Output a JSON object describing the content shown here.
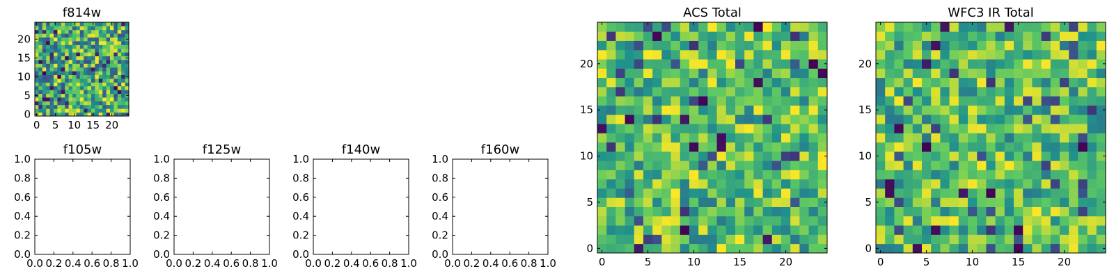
{
  "chart_data": [
    {
      "id": "f814w",
      "type": "heatmap",
      "title": "f814w",
      "colormap": "viridis",
      "grid_size": [
        25,
        25
      ],
      "xlim": [
        -0.5,
        24.5
      ],
      "ylim": [
        -0.5,
        24.5
      ],
      "xticks": [
        0,
        5,
        10,
        15,
        20
      ],
      "yticks": [
        0,
        5,
        10,
        15,
        20
      ],
      "xticklabels": [
        "0",
        "5",
        "10",
        "15",
        "20"
      ],
      "yticklabels": [
        "0",
        "5",
        "10",
        "15",
        "20"
      ],
      "values": "random_uniform_noise_25x25"
    },
    {
      "id": "f105w",
      "type": "heatmap",
      "title": "f105w",
      "empty": true,
      "xlim": [
        0.0,
        1.0
      ],
      "ylim": [
        0.0,
        1.0
      ],
      "xticks": [
        0.0,
        0.2,
        0.4,
        0.6,
        0.8,
        1.0
      ],
      "yticks": [
        0.0,
        0.2,
        0.4,
        0.6,
        0.8,
        1.0
      ],
      "xticklabels": [
        "0.0",
        "0.2",
        "0.4",
        "0.6",
        "0.8",
        "1.0"
      ],
      "yticklabels": [
        "0.0",
        "0.2",
        "0.4",
        "0.6",
        "0.8",
        "1.0"
      ]
    },
    {
      "id": "f125w",
      "type": "heatmap",
      "title": "f125w",
      "empty": true,
      "xlim": [
        0.0,
        1.0
      ],
      "ylim": [
        0.0,
        1.0
      ],
      "xticks": [
        0.0,
        0.2,
        0.4,
        0.6,
        0.8,
        1.0
      ],
      "yticks": [
        0.0,
        0.2,
        0.4,
        0.6,
        0.8,
        1.0
      ],
      "xticklabels": [
        "0.0",
        "0.2",
        "0.4",
        "0.6",
        "0.8",
        "1.0"
      ],
      "yticklabels": [
        "0.0",
        "0.2",
        "0.4",
        "0.6",
        "0.8",
        "1.0"
      ]
    },
    {
      "id": "f140w",
      "type": "heatmap",
      "title": "f140w",
      "empty": true,
      "xlim": [
        0.0,
        1.0
      ],
      "ylim": [
        0.0,
        1.0
      ],
      "xticks": [
        0.0,
        0.2,
        0.4,
        0.6,
        0.8,
        1.0
      ],
      "yticks": [
        0.0,
        0.2,
        0.4,
        0.6,
        0.8,
        1.0
      ],
      "xticklabels": [
        "0.0",
        "0.2",
        "0.4",
        "0.6",
        "0.8",
        "1.0"
      ],
      "yticklabels": [
        "0.0",
        "0.2",
        "0.4",
        "0.6",
        "0.8",
        "1.0"
      ]
    },
    {
      "id": "f160w",
      "type": "heatmap",
      "title": "f160w",
      "empty": true,
      "xlim": [
        0.0,
        1.0
      ],
      "ylim": [
        0.0,
        1.0
      ],
      "xticks": [
        0.0,
        0.2,
        0.4,
        0.6,
        0.8,
        1.0
      ],
      "yticks": [
        0.0,
        0.2,
        0.4,
        0.6,
        0.8,
        1.0
      ],
      "xticklabels": [
        "0.0",
        "0.2",
        "0.4",
        "0.6",
        "0.8",
        "1.0"
      ],
      "yticklabels": [
        "0.0",
        "0.2",
        "0.4",
        "0.6",
        "0.8",
        "1.0"
      ]
    },
    {
      "id": "acs_total",
      "type": "heatmap",
      "title": "ACS Total",
      "colormap": "viridis",
      "grid_size": [
        25,
        25
      ],
      "xlim": [
        -0.5,
        24.5
      ],
      "ylim": [
        -0.5,
        24.5
      ],
      "xticks": [
        0,
        5,
        10,
        15,
        20
      ],
      "yticks": [
        0,
        5,
        10,
        15,
        20
      ],
      "xticklabels": [
        "0",
        "5",
        "10",
        "15",
        "20"
      ],
      "yticklabels": [
        "0",
        "5",
        "10",
        "15",
        "20"
      ],
      "values": "noise_25x25_mostly_green_yellow"
    },
    {
      "id": "wfc3_ir_total",
      "type": "heatmap",
      "title": "WFC3 IR Total",
      "colormap": "viridis",
      "grid_size": [
        25,
        25
      ],
      "xlim": [
        -0.5,
        24.5
      ],
      "ylim": [
        -0.5,
        24.5
      ],
      "xticks": [
        0,
        5,
        10,
        15,
        20
      ],
      "yticks": [
        0,
        5,
        10,
        15,
        20
      ],
      "xticklabels": [
        "0",
        "5",
        "10",
        "15",
        "20"
      ],
      "yticklabels": [
        "0",
        "5",
        "10",
        "15",
        "20"
      ],
      "values": "noise_25x25_mostly_green_yellow"
    }
  ],
  "colors": {
    "viridis": [
      "#440154",
      "#3b528b",
      "#21918c",
      "#5ec962",
      "#fde725"
    ],
    "axis": "#000000",
    "background": "#ffffff"
  }
}
